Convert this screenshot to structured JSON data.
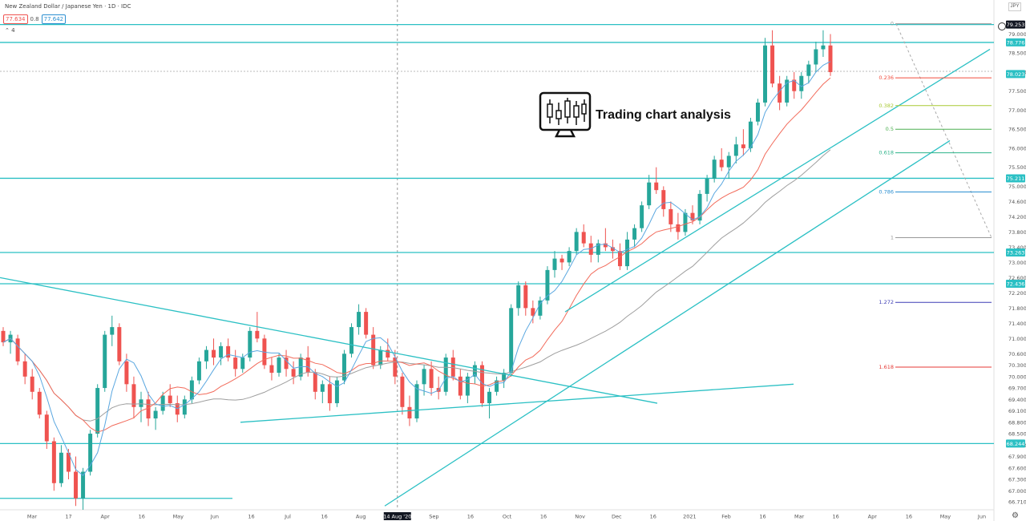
{
  "header": {
    "title": "New Zealand Dollar / Japanese Yen · 1D · IDC",
    "bid": "77.634",
    "spread": "0.8",
    "ask": "77.642",
    "indicator_count": "4",
    "currency": "JPY"
  },
  "logo_text": "Trading chart analysis",
  "colors": {
    "up": "#26a69a",
    "down": "#ef5350",
    "trend": "#2bc0c4",
    "ma_fast": "#5aa7e0",
    "ma_mid": "#f26b5b",
    "ma_slow": "#9e9e9e"
  },
  "chart_data": {
    "type": "candlestick",
    "symbol": "NZD/JPY",
    "timeframe": "1D",
    "y_range": [
      66.5,
      79.6
    ],
    "y_ticks": [
      "79.000",
      "78.500",
      "78.000",
      "77.500",
      "77.000",
      "76.500",
      "76.000",
      "75.500",
      "75.000",
      "74.600",
      "74.200",
      "73.800",
      "73.400",
      "73.000",
      "72.600",
      "72.200",
      "71.800",
      "71.400",
      "71.000",
      "70.600",
      "70.300",
      "70.000",
      "69.700",
      "69.400",
      "69.100",
      "68.800",
      "68.500",
      "68.200",
      "67.900",
      "67.600",
      "67.300",
      "67.000",
      "66.710"
    ],
    "x_labels": [
      "Mar",
      "17",
      "Apr",
      "16",
      "May",
      "Jun",
      "16",
      "Jul",
      "16",
      "Aug",
      "14 Aug '20",
      "Sep",
      "16",
      "Oct",
      "16",
      "Nov",
      "Dec",
      "16",
      "2021",
      "Feb",
      "16",
      "Mar",
      "16",
      "Apr",
      "16",
      "May",
      "Jun"
    ],
    "price_badges": [
      {
        "value": "79.253",
        "style": "dark"
      },
      {
        "value": "78.776",
        "style": "teal"
      },
      {
        "value": "78.023",
        "style": "teal"
      },
      {
        "value": "75.211",
        "style": "teal"
      },
      {
        "value": "73.263",
        "style": "teal"
      },
      {
        "value": "72.436",
        "style": "teal"
      },
      {
        "value": "68.244",
        "style": "teal"
      }
    ],
    "horizontal_levels": [
      79.25,
      78.78,
      75.21,
      73.26,
      72.44,
      68.24
    ],
    "fibonacci": [
      {
        "label": "0",
        "price": 79.27,
        "color": "#999999"
      },
      {
        "label": "0.236",
        "price": 77.85,
        "color": "#f24c3d"
      },
      {
        "label": "0.382",
        "price": 77.12,
        "color": "#a9c934"
      },
      {
        "label": "0.5",
        "price": 76.5,
        "color": "#4caf50"
      },
      {
        "label": "0.618",
        "price": 75.88,
        "color": "#2db38a"
      },
      {
        "label": "0.786",
        "price": 74.85,
        "color": "#2b8fd1"
      },
      {
        "label": "1",
        "price": 73.65,
        "color": "#999999"
      },
      {
        "label": "1.272",
        "price": 71.95,
        "color": "#3f3fb5"
      },
      {
        "label": "1.618",
        "price": 70.25,
        "color": "#e53935"
      }
    ],
    "candles": [
      [
        71.2,
        71.3,
        70.8,
        70.9
      ],
      [
        70.9,
        71.2,
        70.6,
        71.1
      ],
      [
        71.0,
        71.1,
        70.3,
        70.4
      ],
      [
        70.4,
        70.6,
        69.8,
        70.0
      ],
      [
        70.0,
        70.2,
        69.4,
        69.6
      ],
      [
        69.6,
        69.7,
        68.9,
        69.0
      ],
      [
        69.0,
        69.1,
        68.1,
        68.3
      ],
      [
        68.3,
        68.4,
        67.0,
        67.2
      ],
      [
        67.2,
        68.2,
        67.1,
        68.0
      ],
      [
        68.0,
        68.1,
        67.3,
        67.5
      ],
      [
        67.5,
        67.9,
        66.6,
        66.8
      ],
      [
        66.8,
        67.6,
        66.5,
        67.5
      ],
      [
        67.5,
        68.6,
        67.4,
        68.5
      ],
      [
        68.5,
        69.8,
        68.4,
        69.7
      ],
      [
        69.7,
        71.2,
        69.6,
        71.1
      ],
      [
        71.1,
        71.6,
        70.8,
        71.3
      ],
      [
        71.3,
        71.4,
        70.3,
        70.4
      ],
      [
        70.4,
        70.6,
        69.6,
        69.8
      ],
      [
        69.8,
        70.0,
        68.9,
        69.2
      ],
      [
        69.2,
        69.6,
        68.8,
        69.4
      ],
      [
        69.4,
        69.6,
        68.7,
        68.9
      ],
      [
        68.9,
        69.2,
        68.6,
        69.1
      ],
      [
        69.1,
        69.6,
        69.0,
        69.5
      ],
      [
        69.5,
        69.8,
        69.2,
        69.3
      ],
      [
        69.3,
        69.5,
        68.8,
        69.0
      ],
      [
        69.0,
        69.5,
        68.9,
        69.4
      ],
      [
        69.4,
        70.0,
        69.3,
        69.9
      ],
      [
        69.9,
        70.5,
        69.8,
        70.4
      ],
      [
        70.4,
        70.8,
        70.2,
        70.7
      ],
      [
        70.7,
        71.0,
        70.3,
        70.5
      ],
      [
        70.5,
        70.9,
        70.3,
        70.8
      ],
      [
        70.8,
        71.0,
        70.4,
        70.5
      ],
      [
        70.5,
        70.7,
        70.0,
        70.2
      ],
      [
        70.2,
        70.6,
        70.1,
        70.5
      ],
      [
        70.5,
        71.3,
        70.4,
        71.2
      ],
      [
        71.2,
        71.7,
        70.9,
        71.0
      ],
      [
        71.0,
        71.1,
        70.2,
        70.3
      ],
      [
        70.3,
        70.5,
        69.9,
        70.1
      ],
      [
        70.1,
        70.6,
        70.0,
        70.5
      ],
      [
        70.5,
        70.7,
        70.0,
        70.2
      ],
      [
        70.2,
        70.4,
        69.8,
        70.0
      ],
      [
        70.0,
        70.6,
        69.9,
        70.5
      ],
      [
        70.5,
        70.8,
        70.0,
        70.1
      ],
      [
        70.1,
        70.2,
        69.4,
        69.6
      ],
      [
        69.6,
        69.9,
        69.3,
        69.8
      ],
      [
        69.8,
        70.0,
        69.1,
        69.3
      ],
      [
        69.3,
        70.0,
        69.2,
        69.9
      ],
      [
        69.9,
        70.7,
        69.8,
        70.6
      ],
      [
        70.6,
        71.4,
        70.5,
        71.3
      ],
      [
        71.3,
        71.9,
        71.1,
        71.7
      ],
      [
        71.7,
        71.8,
        71.0,
        71.1
      ],
      [
        71.1,
        71.3,
        70.2,
        70.3
      ],
      [
        70.3,
        70.8,
        70.2,
        70.7
      ],
      [
        70.7,
        71.0,
        70.4,
        70.5
      ],
      [
        70.5,
        70.7,
        69.8,
        70.0
      ],
      [
        70.0,
        70.1,
        69.0,
        69.2
      ],
      [
        69.2,
        69.5,
        68.7,
        68.9
      ],
      [
        68.9,
        69.9,
        68.8,
        69.8
      ],
      [
        69.8,
        70.3,
        69.5,
        70.2
      ],
      [
        70.2,
        70.4,
        69.5,
        69.7
      ],
      [
        69.7,
        70.0,
        69.4,
        69.6
      ],
      [
        69.6,
        70.6,
        69.5,
        70.5
      ],
      [
        70.5,
        70.7,
        69.9,
        70.0
      ],
      [
        70.0,
        70.2,
        69.4,
        69.5
      ],
      [
        69.5,
        70.1,
        69.3,
        70.0
      ],
      [
        70.0,
        70.4,
        69.8,
        70.3
      ],
      [
        70.3,
        70.4,
        69.2,
        69.3
      ],
      [
        69.3,
        69.7,
        68.9,
        69.6
      ],
      [
        69.6,
        70.0,
        69.5,
        69.9
      ],
      [
        69.9,
        70.2,
        69.7,
        70.1
      ],
      [
        70.1,
        71.9,
        70.0,
        71.8
      ],
      [
        71.8,
        72.5,
        71.6,
        72.4
      ],
      [
        72.4,
        72.5,
        71.6,
        71.8
      ],
      [
        71.8,
        72.0,
        71.4,
        71.6
      ],
      [
        71.6,
        72.1,
        71.5,
        72.0
      ],
      [
        72.0,
        72.9,
        71.9,
        72.8
      ],
      [
        72.8,
        73.3,
        72.6,
        73.1
      ],
      [
        73.1,
        73.2,
        72.8,
        73.0
      ],
      [
        73.0,
        73.4,
        72.9,
        73.3
      ],
      [
        73.3,
        73.9,
        73.2,
        73.8
      ],
      [
        73.8,
        74.0,
        73.4,
        73.5
      ],
      [
        73.5,
        73.7,
        73.0,
        73.2
      ],
      [
        73.2,
        73.6,
        73.0,
        73.5
      ],
      [
        73.5,
        73.9,
        73.3,
        73.4
      ],
      [
        73.4,
        73.6,
        73.1,
        73.3
      ],
      [
        73.3,
        73.5,
        72.8,
        72.9
      ],
      [
        72.9,
        73.8,
        72.8,
        73.6
      ],
      [
        73.6,
        74.0,
        73.4,
        73.9
      ],
      [
        73.9,
        74.6,
        73.8,
        74.5
      ],
      [
        74.5,
        75.3,
        74.4,
        75.1
      ],
      [
        75.1,
        75.5,
        74.8,
        74.9
      ],
      [
        74.9,
        75.0,
        74.2,
        74.4
      ],
      [
        74.4,
        74.6,
        73.8,
        74.0
      ],
      [
        74.0,
        74.3,
        73.6,
        73.8
      ],
      [
        73.8,
        74.4,
        73.7,
        74.3
      ],
      [
        74.3,
        74.5,
        74.0,
        74.1
      ],
      [
        74.1,
        74.9,
        74.0,
        74.8
      ],
      [
        74.8,
        75.3,
        74.6,
        75.2
      ],
      [
        75.2,
        75.8,
        75.1,
        75.7
      ],
      [
        75.7,
        76.0,
        75.4,
        75.5
      ],
      [
        75.5,
        75.9,
        75.2,
        75.8
      ],
      [
        75.8,
        76.3,
        75.6,
        76.1
      ],
      [
        76.1,
        76.5,
        75.8,
        76.0
      ],
      [
        76.0,
        76.8,
        75.9,
        76.7
      ],
      [
        76.7,
        77.3,
        76.6,
        77.2
      ],
      [
        77.2,
        78.9,
        77.1,
        78.7
      ],
      [
        78.7,
        79.1,
        77.6,
        77.7
      ],
      [
        77.7,
        77.9,
        77.0,
        77.2
      ],
      [
        77.2,
        77.9,
        77.1,
        77.8
      ],
      [
        77.8,
        78.0,
        77.3,
        77.5
      ],
      [
        77.5,
        78.0,
        77.3,
        77.9
      ],
      [
        77.9,
        78.3,
        77.7,
        78.2
      ],
      [
        78.2,
        78.8,
        78.0,
        78.6
      ],
      [
        78.6,
        79.1,
        78.4,
        78.7
      ],
      [
        78.7,
        79.0,
        77.9,
        78.0
      ]
    ]
  }
}
